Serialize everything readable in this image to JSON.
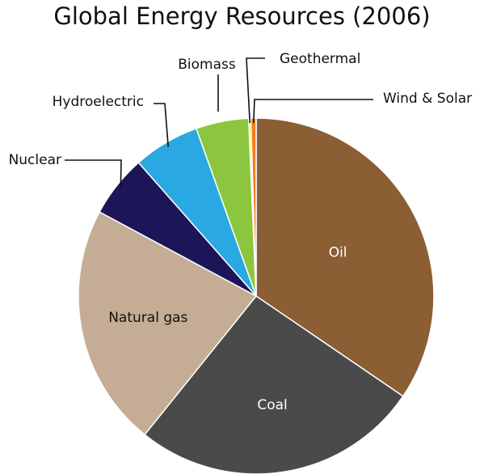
{
  "chart_data": {
    "type": "pie",
    "title": "Global Energy Resources (2006)",
    "unit": "%",
    "slices": [
      {
        "label": "Oil",
        "value": 36.0,
        "color": "#8B5E34"
      },
      {
        "label": "Coal",
        "value": 27.4,
        "color": "#4A4A4A"
      },
      {
        "label": "Natural gas",
        "value": 23.0,
        "color": "#C4AD94"
      },
      {
        "label": "Nuclear",
        "value": 5.9,
        "color": "#1C1658"
      },
      {
        "label": "Hydroelectric",
        "value": 6.3,
        "color": "#2AA8E1"
      },
      {
        "label": "Biomass",
        "value": 5.0,
        "color": "#8CC63F"
      },
      {
        "label": "Geothermal",
        "value": 0.2,
        "color": "#F5EB1C"
      },
      {
        "label": "Wind & Solar",
        "value": 0.5,
        "color": "#F47C20"
      }
    ],
    "legend": "none"
  }
}
